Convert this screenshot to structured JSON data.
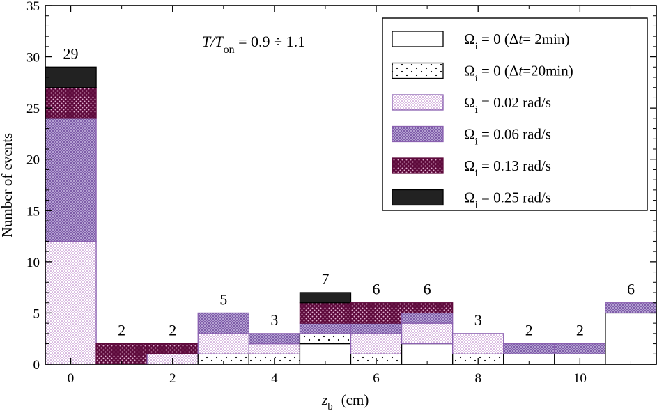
{
  "chart_data": {
    "type": "bar",
    "stacked": true,
    "annotation": {
      "T": "T",
      "slash_T": "/T",
      "sub": "on",
      "rest": " = 0.9  ÷ 1.1"
    },
    "xlabel": {
      "var": "z",
      "sub": "b",
      "unit": "(cm)"
    },
    "ylabel": "Number of events",
    "xlim": [
      -0.5,
      11.5
    ],
    "ylim": [
      0,
      35
    ],
    "xticks": [
      0,
      2,
      4,
      6,
      8,
      10
    ],
    "yticks": [
      0,
      5,
      10,
      15,
      20,
      25,
      30,
      35
    ],
    "grid": false,
    "legend_position": "top-right",
    "x": [
      0,
      1,
      2,
      3,
      4,
      5,
      6,
      7,
      8,
      9,
      10,
      11
    ],
    "totals": [
      29,
      2,
      2,
      5,
      3,
      7,
      6,
      6,
      3,
      2,
      2,
      6
    ],
    "series": [
      {
        "name": "Ω_i = 0 (Δt= 2min)",
        "legend": {
          "omega": "Ω",
          "sub": "i",
          "pre": " = 0 (",
          "delta": "Δ",
          "t": "t",
          "post": "= 2min)"
        },
        "values": [
          0,
          0,
          0,
          0,
          0,
          2,
          0,
          2,
          0,
          1,
          1,
          5
        ],
        "color": "#ffffff",
        "pattern": "none"
      },
      {
        "name": "Ω_i = 0 (Δt=20min)",
        "legend": {
          "omega": "Ω",
          "sub": "i",
          "pre": " = 0 (",
          "delta": "Δ",
          "t": "t",
          "post": "=20min)"
        },
        "values": [
          0,
          0,
          0,
          1,
          1,
          1,
          1,
          0,
          1,
          0,
          0,
          0
        ],
        "color": "#000000",
        "pattern": "sparse-dots"
      },
      {
        "name": "Ω_i = 0.02 rad/s",
        "legend": {
          "omega": "Ω",
          "sub": "i",
          "pre": " = 0.02 rad/s"
        },
        "values": [
          12,
          0,
          1,
          2,
          1,
          0,
          2,
          2,
          2,
          0,
          0,
          0
        ],
        "color": "#b070c0",
        "pattern": "fine-dots"
      },
      {
        "name": "Ω_i = 0.06 rad/s",
        "legend": {
          "omega": "Ω",
          "sub": "i",
          "pre": " = 0.06 rad/s"
        },
        "values": [
          12,
          0,
          0,
          2,
          1,
          1,
          1,
          1,
          0,
          1,
          1,
          1
        ],
        "color": "#8a66b0",
        "pattern": "crosshatch"
      },
      {
        "name": "Ω_i = 0.13 rad/s",
        "legend": {
          "omega": "Ω",
          "sub": "i",
          "pre": " = 0.13 rad/s"
        },
        "values": [
          3,
          2,
          1,
          0,
          0,
          2,
          2,
          1,
          0,
          0,
          0,
          0
        ],
        "color": "#6a0d45",
        "pattern": "dark-dots"
      },
      {
        "name": "Ω_i = 0.25 rad/s",
        "legend": {
          "omega": "Ω",
          "sub": "i",
          "pre": " = 0.25 rad/s"
        },
        "values": [
          2,
          0,
          0,
          0,
          0,
          1,
          0,
          0,
          0,
          0,
          0,
          0
        ],
        "color": "#222222",
        "pattern": "solid"
      }
    ]
  }
}
